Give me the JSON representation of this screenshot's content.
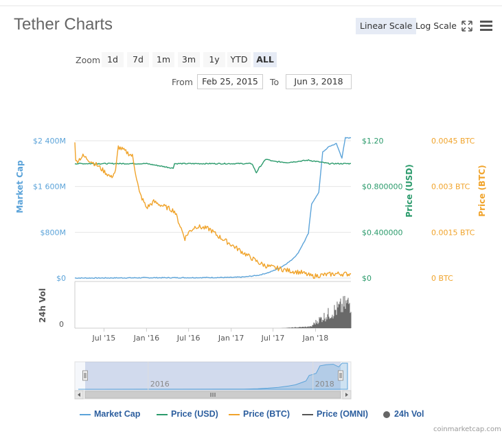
{
  "title": "Tether Charts",
  "scale_buttons": [
    {
      "label": "Linear Scale",
      "active": true
    },
    {
      "label": "Log Scale",
      "active": false
    }
  ],
  "zoom": {
    "label": "Zoom",
    "buttons": [
      "1d",
      "7d",
      "1m",
      "3m",
      "1y",
      "YTD",
      "ALL"
    ],
    "active": "ALL"
  },
  "range": {
    "from_label": "From",
    "from_value": "Feb 25, 2015",
    "to_label": "To",
    "to_value": "Jun 3, 2018"
  },
  "icons": {
    "fullscreen": "fullscreen-icon",
    "menu": "menu-icon"
  },
  "colors": {
    "market_cap": "#5ba3d9",
    "price_usd": "#2a9a6b",
    "price_btc": "#f0a32a",
    "price_omni": "#555555",
    "vol": "#666666"
  },
  "chart_data": {
    "type": "line",
    "x_range": [
      "2015-02-25",
      "2018-06-03"
    ],
    "x_ticks": [
      "Jul '15",
      "Jan '16",
      "Jul '16",
      "Jan '17",
      "Jul '17",
      "Jan '18"
    ],
    "axes": {
      "market_cap": {
        "label": "Market Cap",
        "ticks": [
          "$0",
          "$800M",
          "$1 600M",
          "$2 400M"
        ],
        "range": [
          0,
          2400
        ]
      },
      "price_usd": {
        "label": "Price (USD)",
        "ticks": [
          "$0",
          "$0.400000",
          "$0.800000",
          "$1.20"
        ],
        "range": [
          0,
          1.2
        ]
      },
      "price_btc": {
        "label": "Price (BTC)",
        "ticks": [
          "0 BTC",
          "0.0015 BTC",
          "0.003 BTC",
          "0.0045 BTC"
        ],
        "range": [
          0,
          0.0045
        ]
      },
      "vol": {
        "label": "24h Vol",
        "ticks": [
          "0"
        ]
      }
    },
    "series": [
      {
        "name": "Market Cap",
        "unit": "$M",
        "x": [
          "2015-02-25",
          "2015-06-01",
          "2016-01-01",
          "2016-06-01",
          "2017-01-01",
          "2017-03-01",
          "2017-05-01",
          "2017-06-15",
          "2017-08-01",
          "2017-09-15",
          "2017-10-15",
          "2017-11-15",
          "2017-12-01",
          "2017-12-15",
          "2018-01-01",
          "2018-01-15",
          "2018-02-01",
          "2018-03-01",
          "2018-04-01",
          "2018-04-25",
          "2018-05-10",
          "2018-06-03"
        ],
        "values": [
          0.3,
          0.6,
          5,
          6,
          10,
          20,
          50,
          100,
          180,
          300,
          420,
          650,
          780,
          1300,
          1400,
          1500,
          2200,
          2300,
          2350,
          2100,
          2450,
          2450
        ]
      },
      {
        "name": "Price (USD)",
        "unit": "USD",
        "x": [
          "2015-02-25",
          "2015-03-01",
          "2015-06-01",
          "2016-01-01",
          "2016-04-25",
          "2016-05-01",
          "2017-01-01",
          "2017-04-01",
          "2017-04-20",
          "2017-05-01",
          "2017-06-01",
          "2017-07-01",
          "2017-09-01",
          "2017-12-01",
          "2018-01-01",
          "2018-03-01",
          "2018-06-03"
        ],
        "values": [
          1.0,
          1.0,
          1.0,
          1.0,
          0.96,
          1.0,
          1.0,
          1.0,
          0.92,
          0.96,
          1.04,
          1.02,
          1.01,
          1.03,
          1.02,
          1.0,
          1.0
        ]
      },
      {
        "name": "Price (BTC)",
        "unit": "BTC",
        "x": [
          "2015-02-25",
          "2015-03-01",
          "2015-04-01",
          "2015-06-01",
          "2015-08-01",
          "2015-08-20",
          "2015-09-01",
          "2015-11-01",
          "2015-12-01",
          "2016-01-01",
          "2016-02-01",
          "2016-03-01",
          "2016-05-01",
          "2016-06-15",
          "2016-07-01",
          "2016-08-01",
          "2016-10-01",
          "2016-11-01",
          "2017-01-01",
          "2017-03-01",
          "2017-05-01",
          "2017-06-01",
          "2017-07-01",
          "2017-09-01",
          "2017-11-01",
          "2017-12-15",
          "2018-01-01",
          "2018-02-01",
          "2018-04-01",
          "2018-06-03"
        ],
        "values": [
          0.0045,
          0.0038,
          0.004,
          0.0037,
          0.0033,
          0.0035,
          0.0043,
          0.004,
          0.0028,
          0.0023,
          0.0025,
          0.0024,
          0.0022,
          0.0013,
          0.0015,
          0.0017,
          0.0016,
          0.0014,
          0.0011,
          0.0008,
          0.0005,
          0.0004,
          0.00035,
          0.00025,
          0.00018,
          6e-05,
          7e-05,
          0.0001,
          0.00014,
          0.00013
        ]
      },
      {
        "name": "Price (OMNI)",
        "values": []
      },
      {
        "name": "24h Vol",
        "x_range": [
          "2017-08-01",
          "2018-06-03"
        ],
        "values": []
      }
    ],
    "navigator_labels": [
      "2016",
      "2018"
    ],
    "legend_position": "bottom"
  },
  "legend": [
    "Market Cap",
    "Price (USD)",
    "Price (BTC)",
    "Price (OMNI)",
    "24h Vol"
  ],
  "credit": "coinmarketcap.com"
}
